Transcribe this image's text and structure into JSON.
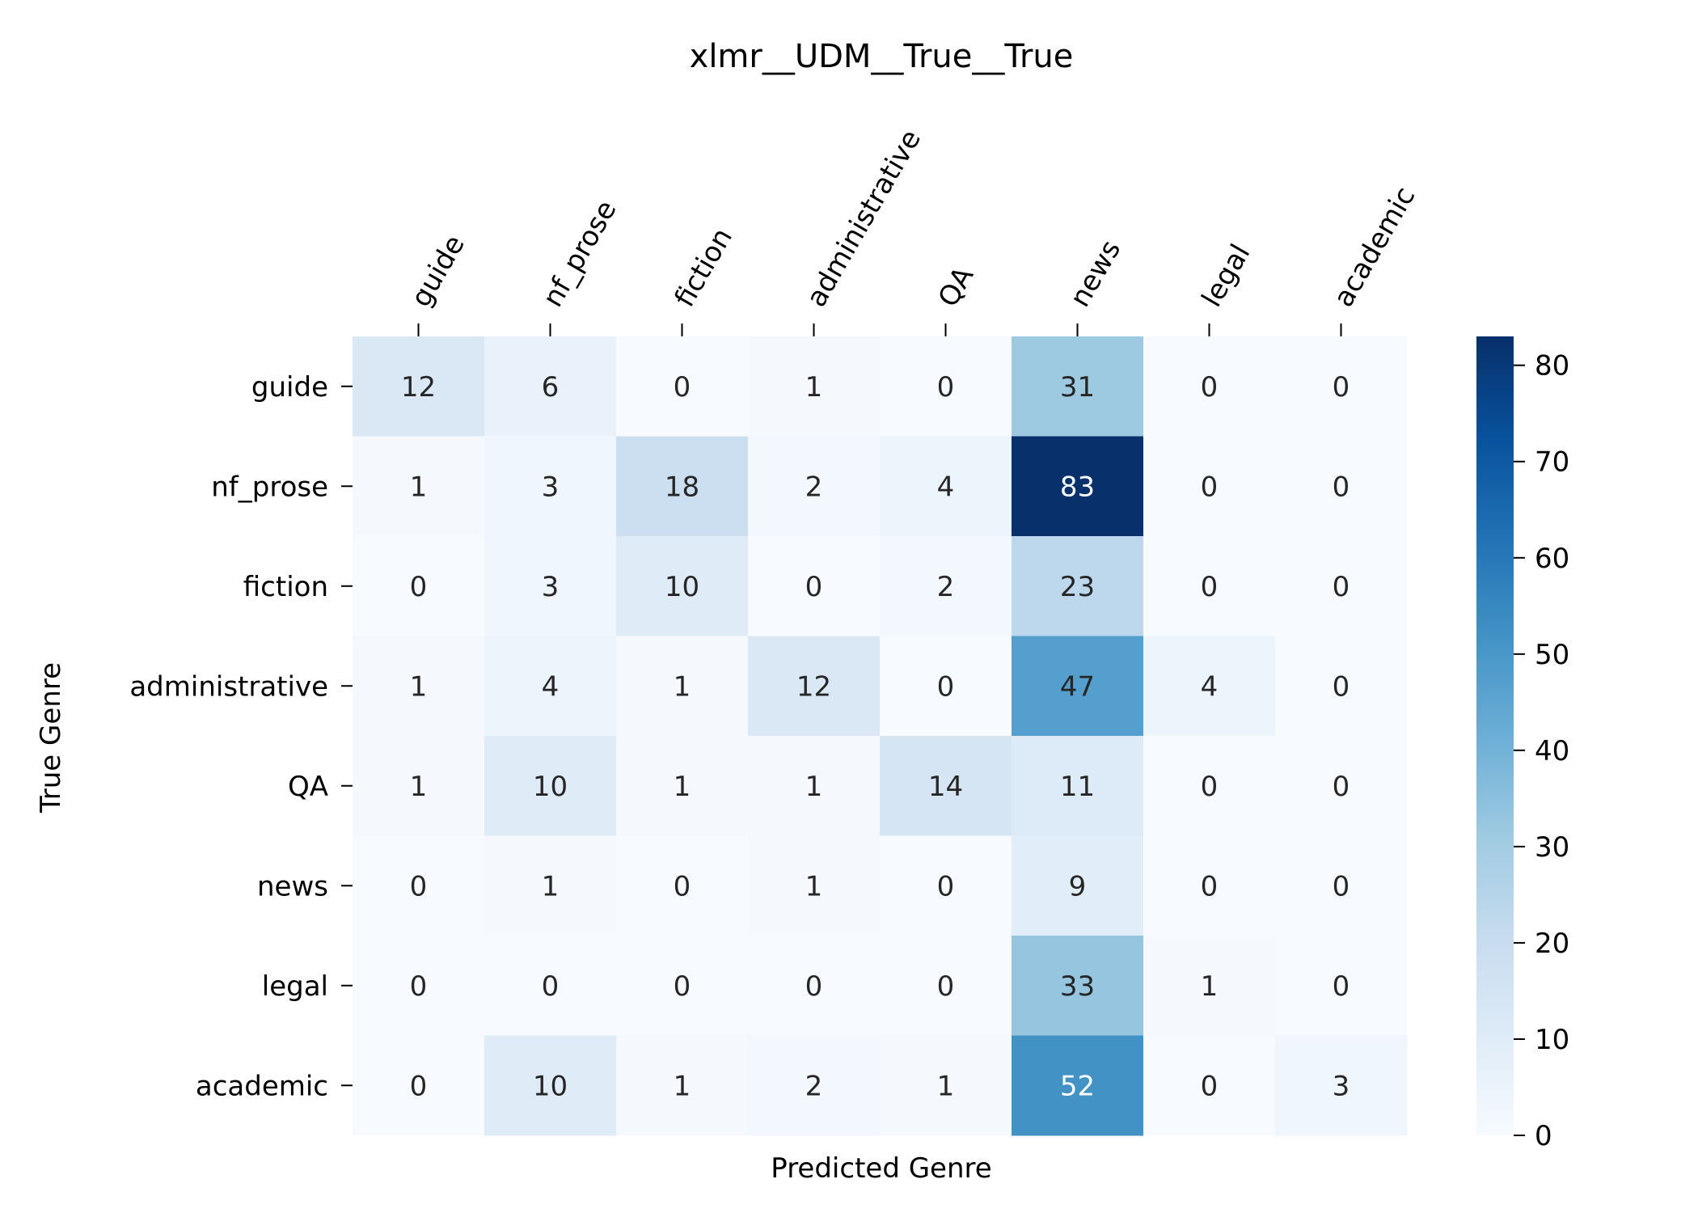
{
  "chart_data": {
    "type": "heatmap",
    "title": "xlmr__UDM__True__True",
    "xlabel": "Predicted Genre",
    "ylabel": "True Genre",
    "x_categories": [
      "guide",
      "nf_prose",
      "fiction",
      "administrative",
      "QA",
      "news",
      "legal",
      "academic"
    ],
    "y_categories": [
      "guide",
      "nf_prose",
      "fiction",
      "administrative",
      "QA",
      "news",
      "legal",
      "academic"
    ],
    "values": [
      [
        12,
        6,
        0,
        1,
        0,
        31,
        0,
        0
      ],
      [
        1,
        3,
        18,
        2,
        4,
        83,
        0,
        0
      ],
      [
        0,
        3,
        10,
        0,
        2,
        23,
        0,
        0
      ],
      [
        1,
        4,
        1,
        12,
        0,
        47,
        4,
        0
      ],
      [
        1,
        10,
        1,
        1,
        14,
        11,
        0,
        0
      ],
      [
        0,
        1,
        0,
        1,
        0,
        9,
        0,
        0
      ],
      [
        0,
        0,
        0,
        0,
        0,
        33,
        1,
        0
      ],
      [
        0,
        10,
        1,
        2,
        1,
        52,
        0,
        3
      ]
    ],
    "colormap": "Blues",
    "colorbar": {
      "min": 0,
      "max": 83,
      "ticks": [
        0,
        10,
        20,
        30,
        40,
        50,
        60,
        70,
        80
      ]
    },
    "x_axis_position": "top",
    "x_tick_rotation_deg": -60,
    "grid": false,
    "legend": "colorbar-right"
  }
}
